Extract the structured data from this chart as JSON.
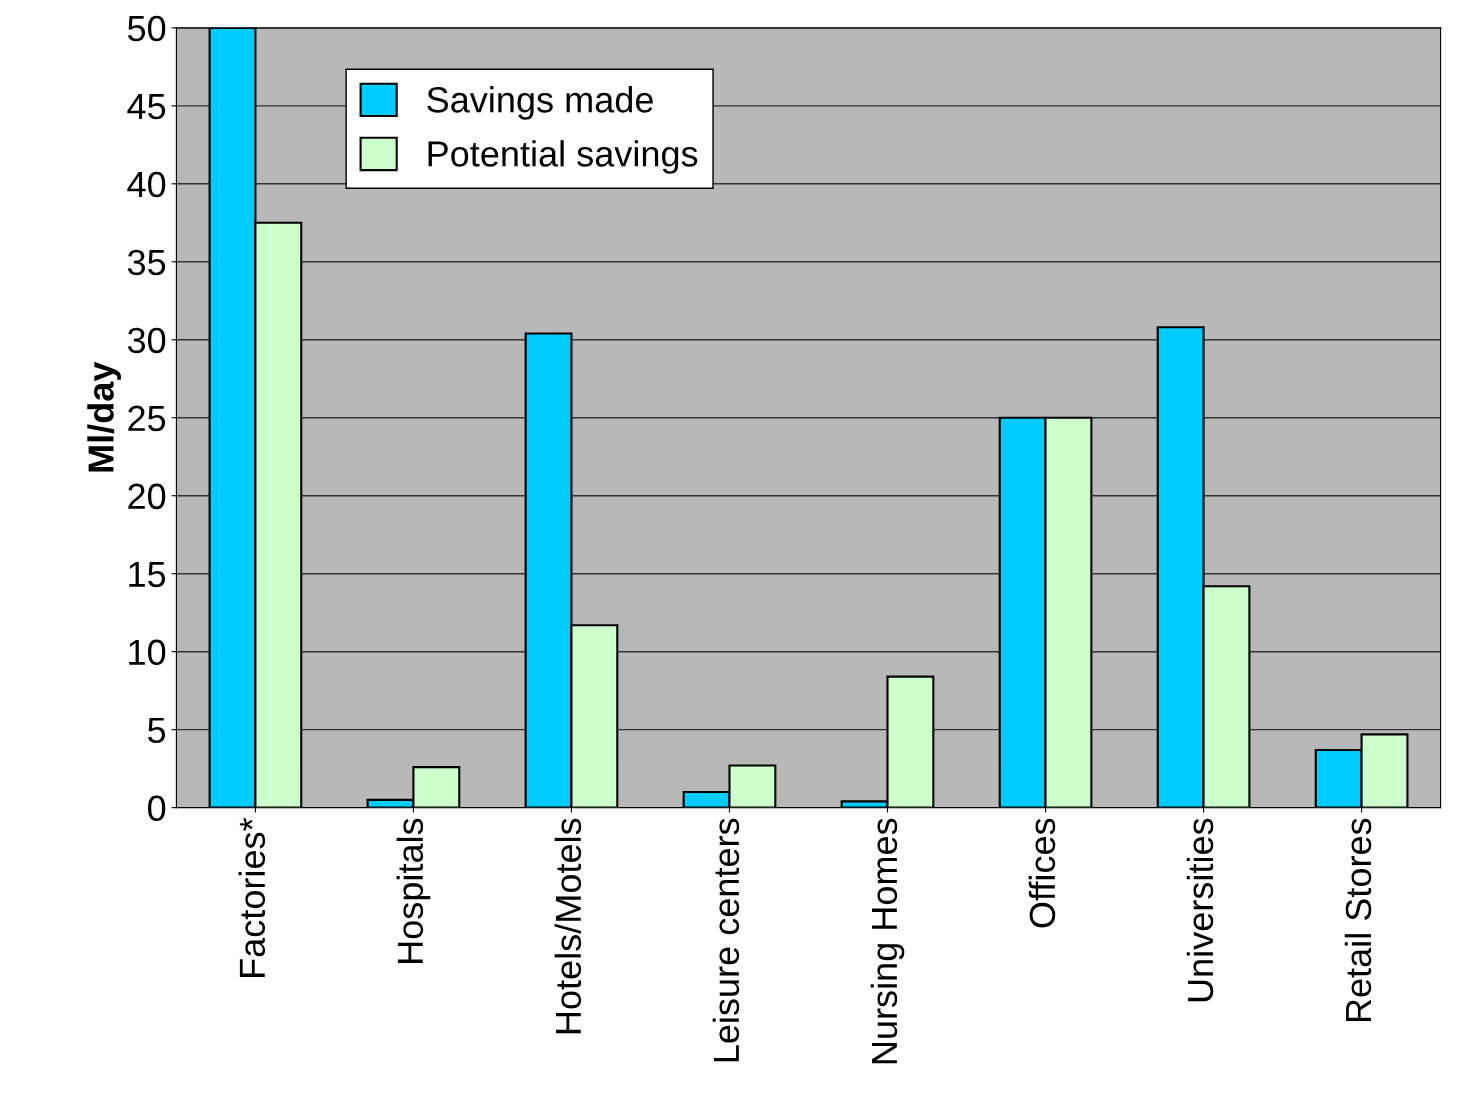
{
  "chart_data": {
    "type": "bar",
    "ylabel": "Ml/day",
    "categories": [
      "Factories*",
      "Hospitals",
      "Hotels/Motels",
      "Leisure centers",
      "Nursing Homes",
      "Offices",
      "Universities",
      "Retail Stores"
    ],
    "series": [
      {
        "name": "Savings made",
        "color": "#00ccff",
        "values": [
          50,
          0.5,
          30.4,
          1.0,
          0.4,
          25,
          30.8,
          3.7
        ]
      },
      {
        "name": "Potential savings",
        "color": "#ccffcc",
        "values": [
          37.5,
          2.6,
          11.7,
          2.7,
          8.4,
          25,
          14.2,
          4.7
        ]
      }
    ],
    "ylim": [
      0,
      50
    ],
    "yticks": [
      0,
      5,
      10,
      15,
      20,
      25,
      30,
      35,
      40,
      45,
      50
    ],
    "grid": "y",
    "legend": "top left"
  }
}
